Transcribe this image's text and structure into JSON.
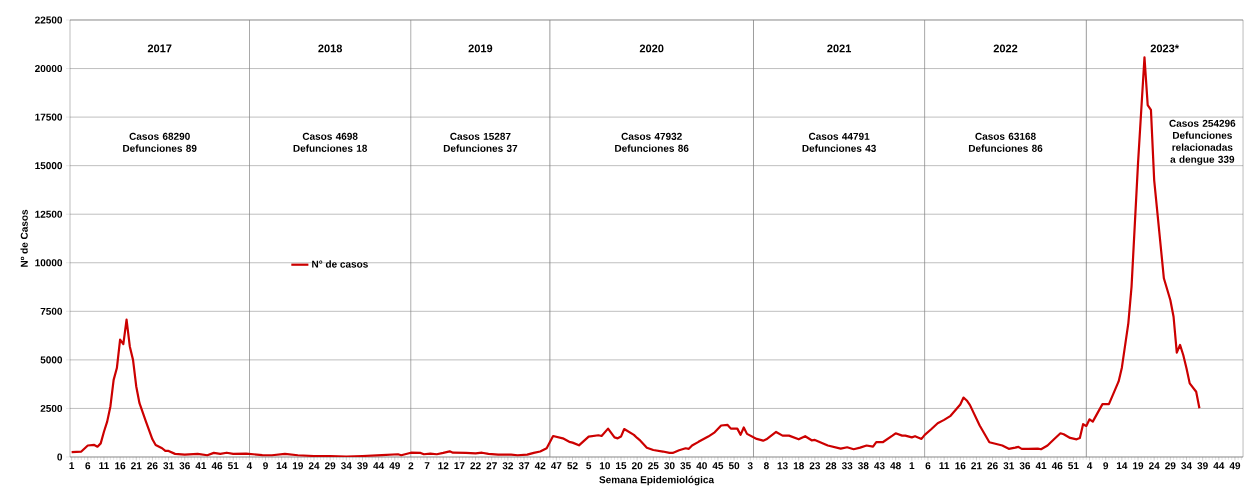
{
  "chart_data": {
    "type": "line",
    "xlabel": "Semana Epidemiológica",
    "ylabel": "Nº de Casos",
    "categories": [
      "1",
      null,
      null,
      null,
      null,
      "6",
      null,
      null,
      null,
      null,
      "11",
      null,
      null,
      null,
      null,
      "16",
      null,
      null,
      null,
      null,
      "21",
      null,
      null,
      null,
      null,
      "26",
      null,
      null,
      null,
      null,
      "31",
      null,
      null,
      null,
      null,
      "36",
      null,
      null,
      null,
      null,
      "41",
      null,
      null,
      null,
      null,
      "46",
      null,
      null,
      null,
      null,
      "51",
      null,
      null,
      null,
      null,
      "4",
      null,
      null,
      null,
      null,
      "9",
      null,
      null,
      null,
      null,
      "14",
      null,
      null,
      null,
      null,
      "19",
      null,
      null,
      null,
      null,
      "24",
      null,
      null,
      null,
      null,
      "29",
      null,
      null,
      null,
      null,
      "34",
      null,
      null,
      null,
      null,
      "39",
      null,
      null,
      null,
      null,
      "44",
      null,
      null,
      null,
      null,
      "49",
      null,
      null,
      null,
      null,
      "2",
      null,
      null,
      null,
      null,
      "7",
      null,
      null,
      null,
      null,
      "12",
      null,
      null,
      null,
      null,
      "17",
      null,
      null,
      null,
      null,
      "22",
      null,
      null,
      null,
      null,
      "27",
      null,
      null,
      null,
      null,
      "32",
      null,
      null,
      null,
      null,
      "37",
      null,
      null,
      null,
      null,
      "42",
      null,
      null,
      null,
      null,
      "47",
      null,
      null,
      null,
      null,
      "52",
      null,
      null,
      null,
      null,
      "5",
      null,
      null,
      null,
      null,
      "10",
      null,
      null,
      null,
      null,
      "15",
      null,
      null,
      null,
      null,
      "20",
      null,
      null,
      null,
      null,
      "25",
      null,
      null,
      null,
      null,
      "30",
      null,
      null,
      null,
      null,
      "35",
      null,
      null,
      null,
      null,
      "40",
      null,
      null,
      null,
      null,
      "45",
      null,
      null,
      null,
      null,
      "50",
      null,
      null,
      null,
      null,
      "3",
      null,
      null,
      null,
      null,
      "8",
      null,
      null,
      null,
      null,
      "13",
      null,
      null,
      null,
      null,
      "18",
      null,
      null,
      null,
      null,
      "23",
      null,
      null,
      null,
      null,
      "28",
      null,
      null,
      null,
      null,
      "33",
      null,
      null,
      null,
      null,
      "38",
      null,
      null,
      null,
      null,
      "43",
      null,
      null,
      null,
      null,
      "48",
      null,
      null,
      null,
      null,
      "1",
      null,
      null,
      null,
      null,
      "6",
      null,
      null,
      null,
      null,
      "11",
      null,
      null,
      null,
      null,
      "16",
      null,
      null,
      null,
      null,
      "21",
      null,
      null,
      null,
      null,
      "26",
      null,
      null,
      null,
      null,
      "31",
      null,
      null,
      null,
      null,
      "36",
      null,
      null,
      null,
      null,
      "41",
      null,
      null,
      null,
      null,
      "46",
      null,
      null,
      null,
      null,
      "51",
      null,
      null,
      null,
      null,
      "4",
      null,
      null,
      null,
      null,
      "9",
      null,
      null,
      null,
      null,
      "14",
      null,
      null,
      null,
      null,
      "19",
      null,
      null,
      null,
      null,
      "24",
      null,
      null,
      null,
      null,
      "29",
      null,
      null,
      null,
      null,
      "34",
      null,
      null,
      null,
      null,
      "39",
      null,
      null,
      null,
      null,
      "44",
      null,
      null,
      null,
      null,
      "49",
      null,
      null
    ],
    "series": [
      {
        "name": "N° de casos",
        "color": "#cc0000",
        "values": [
          250,
          null,
          null,
          280,
          null,
          590,
          null,
          620,
          530,
          700,
          1300,
          1820,
          2600,
          3970,
          4580,
          6040,
          5810,
          7070,
          5690,
          5000,
          3630,
          2770,
          null,
          1820,
          null,
          910,
          620,
          null,
          450,
          310,
          310,
          null,
          160,
          null,
          null,
          120,
          null,
          null,
          null,
          160,
          null,
          null,
          90,
          null,
          210,
          null,
          160,
          null,
          220,
          null,
          160,
          null,
          null,
          null,
          170,
          null,
          null,
          null,
          null,
          100,
          null,
          null,
          90,
          null,
          null,
          null,
          160,
          null,
          null,
          null,
          90,
          null,
          null,
          null,
          null,
          50,
          null,
          null,
          null,
          null,
          40,
          null,
          null,
          null,
          null,
          20,
          null,
          null,
          null,
          null,
          50,
          null,
          null,
          null,
          null,
          null,
          100,
          null,
          null,
          null,
          null,
          140,
          90,
          null,
          null,
          220,
          null,
          null,
          210,
          140,
          null,
          170,
          null,
          140,
          null,
          210,
          null,
          290,
          220,
          null,
          null,
          null,
          210,
          null,
          null,
          190,
          null,
          220,
          null,
          160,
          null,
          null,
          120,
          null,
          null,
          null,
          120,
          null,
          90,
          null,
          null,
          120,
          null,
          210,
          null,
          280,
          null,
          450,
          null,
          1080,
          null,
          null,
          960,
          null,
          780,
          740,
          null,
          600,
          null,
          null,
          1050,
          null,
          null,
          1120,
          1080,
          null,
          1460,
          null,
          1010,
          960,
          1050,
          1440,
          null,
          null,
          1140,
          980,
          840,
          null,
          480,
          null,
          360,
          null,
          null,
          280,
          null,
          210,
          210,
          null,
          350,
          null,
          450,
          420,
          590,
          null,
          780,
          null,
          null,
          1050,
          null,
          1270,
          null,
          1620,
          null,
          1650,
          1460,
          null,
          1460,
          1140,
          1520,
          1190,
          null,
          null,
          930,
          null,
          840,
          910,
          null,
          null,
          1290,
          null,
          1100,
          null,
          1100,
          null,
          null,
          910,
          null,
          1070,
          null,
          860,
          880,
          null,
          null,
          null,
          590,
          null,
          null,
          null,
          430,
          null,
          500,
          null,
          400,
          null,
          480,
          null,
          590,
          null,
          530,
          760,
          null,
          760,
          null,
          null,
          1100,
          1220,
          null,
          1100,
          1100,
          null,
          1010,
          1070,
          null,
          930,
          1140,
          null,
          1430,
          null,
          1740,
          null,
          1910,
          null,
          2120,
          null,
          2510,
          2700,
          3060,
          2910,
          2670,
          null,
          null,
          1620,
          null,
          null,
          760,
          null,
          null,
          null,
          590,
          null,
          420,
          null,
          480,
          520,
          420,
          null,
          420,
          null,
          null,
          430,
          400,
          null,
          590,
          null,
          910,
          null,
          1220,
          1170,
          null,
          980,
          null,
          910,
          980,
          1690,
          1600,
          1940,
          1820,
          null,
          null,
          2720,
          null,
          2720,
          null,
          null,
          3890,
          4600,
          null,
          6880,
          8770,
          null,
          15120,
          null,
          20580,
          18120,
          17870,
          14260,
          null,
          null,
          9200,
          null,
          8080,
          7220,
          5370,
          5770,
          5250,
          4570,
          3790,
          null,
          3360,
          2510,
          null,
          null,
          null,
          null,
          null,
          null,
          null,
          null,
          null,
          null,
          null,
          null,
          null
        ]
      }
    ],
    "ylim": [
      0,
      22500
    ],
    "yticks": [
      0,
      2500,
      5000,
      7500,
      10000,
      12500,
      15000,
      17500,
      20000,
      22500
    ],
    "grid": "y",
    "legend": "left",
    "annotations": [
      "2017",
      "2018",
      "2019",
      "2020",
      "2021",
      "2022",
      "2023*",
      "Casos 68290 Defunciones 89",
      "Casos 4698 Defunciones 18",
      "Casos 15287 Defunciones 37",
      "Casos 47932 Defunciones 86",
      "Casos 44791 Defunciones 43",
      "Casos 63168 Defunciones 86",
      "Casos 254296 Defunciones relacionadas a dengue 339"
    ]
  }
}
